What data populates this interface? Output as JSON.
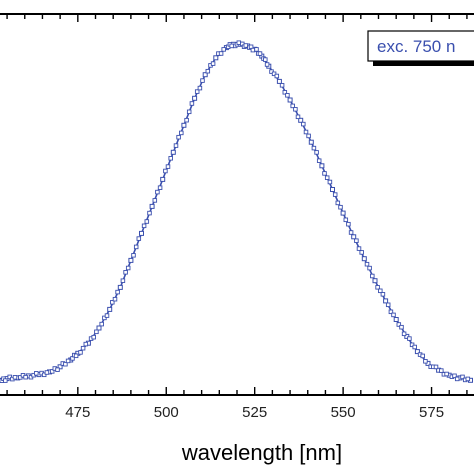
{
  "chart_data": {
    "type": "scatter",
    "xlabel": "wavelength [nm]",
    "ylabel": "",
    "xlim": [
      453,
      587
    ],
    "ylim": [
      0,
      1.06
    ],
    "xticks": [
      "475",
      "500",
      "525",
      "550",
      "575"
    ],
    "tick_values": [
      475,
      500,
      525,
      550,
      575
    ],
    "legend": {
      "label": "exc. 750 n",
      "placement": "top-right"
    },
    "colors": {
      "series": "#3a4fae",
      "axis": "#000000"
    },
    "grid": false,
    "series": [
      {
        "name": "exc. 750 n",
        "x": [
          453,
          455,
          458,
          461,
          464,
          467,
          470,
          473,
          475,
          478,
          481,
          484,
          487,
          490,
          493,
          496,
          499,
          502,
          505,
          508,
          511,
          514,
          517,
          519,
          521,
          523,
          525,
          527,
          529,
          532,
          535,
          538,
          541,
          544,
          547,
          550,
          553,
          556,
          559,
          562,
          565,
          568,
          571,
          574,
          577,
          580,
          583,
          586
        ],
        "y": [
          0.005,
          0.01,
          0.012,
          0.018,
          0.022,
          0.03,
          0.045,
          0.065,
          0.085,
          0.115,
          0.16,
          0.215,
          0.28,
          0.36,
          0.44,
          0.52,
          0.6,
          0.68,
          0.76,
          0.84,
          0.91,
          0.96,
          0.99,
          1.0,
          1.0,
          0.995,
          0.985,
          0.965,
          0.935,
          0.89,
          0.835,
          0.775,
          0.71,
          0.64,
          0.57,
          0.5,
          0.43,
          0.365,
          0.3,
          0.24,
          0.185,
          0.135,
          0.09,
          0.055,
          0.035,
          0.02,
          0.012,
          0.005
        ]
      }
    ]
  }
}
